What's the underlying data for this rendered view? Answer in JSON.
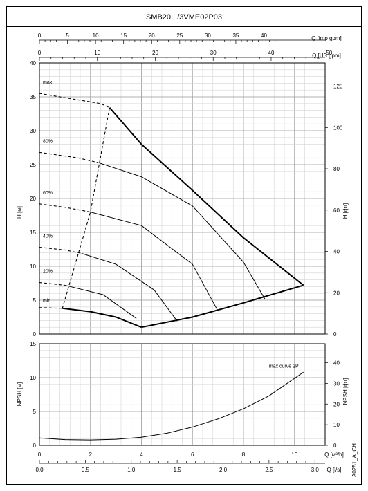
{
  "title": "SMB20.../3VME02P03",
  "side_code": "A0251_A_CH",
  "chart_data": [
    {
      "type": "line",
      "name": "performance",
      "xlabel": "Q [m³/h]",
      "ylabel": "H [м]",
      "ylabel_right": "H [фт]",
      "top_axes": [
        {
          "label": "Q [imp gpm]",
          "ticks": [
            0,
            5,
            10,
            15,
            20,
            25,
            30,
            35,
            40
          ]
        },
        {
          "label": "Q [US gpm]",
          "ticks": [
            0,
            10,
            20,
            30,
            40,
            50
          ]
        }
      ],
      "xlim": [
        0,
        11.2
      ],
      "ylim": [
        0,
        40
      ],
      "y_ticks": [
        0,
        5,
        10,
        15,
        20,
        25,
        30,
        35,
        40
      ],
      "y_ticks_right": [
        0,
        20,
        40,
        60,
        80,
        100,
        120
      ],
      "grid": true,
      "speed_labels": [
        "max",
        "80%",
        "60%",
        "40%",
        "20%",
        "min"
      ],
      "series": [
        {
          "name": "max",
          "style": "dashed",
          "x": [
            0,
            2.4,
            2.75
          ],
          "y": [
            35.5,
            34.0,
            33.4
          ]
        },
        {
          "name": "max",
          "style": "solid",
          "x": [
            2.75,
            4.0,
            6.0,
            8.0,
            10.35
          ],
          "y": [
            33.4,
            28.0,
            21.2,
            14.2,
            7.2
          ]
        },
        {
          "name": "80%",
          "style": "dashed",
          "x": [
            0,
            1.5,
            2.3
          ],
          "y": [
            26.8,
            26.0,
            25.3
          ]
        },
        {
          "name": "80%",
          "style": "solid",
          "x": [
            2.3,
            4.0,
            6.0,
            8.0,
            8.85
          ],
          "y": [
            25.3,
            23.2,
            18.9,
            10.6,
            5.1
          ]
        },
        {
          "name": "60%",
          "style": "dashed",
          "x": [
            0,
            1.0,
            2.0
          ],
          "y": [
            19.2,
            18.7,
            18.0
          ]
        },
        {
          "name": "60%",
          "style": "solid",
          "x": [
            2.0,
            4.0,
            6.0,
            7.0
          ],
          "y": [
            18.0,
            16.0,
            10.3,
            3.4
          ]
        },
        {
          "name": "40%",
          "style": "dashed",
          "x": [
            0,
            1.0,
            1.65
          ],
          "y": [
            12.8,
            12.4,
            11.9
          ]
        },
        {
          "name": "40%",
          "style": "solid",
          "x": [
            1.65,
            3.0,
            4.5,
            5.4
          ],
          "y": [
            11.9,
            10.3,
            6.5,
            1.9
          ]
        },
        {
          "name": "20%",
          "style": "dashed",
          "x": [
            0,
            1.0
          ],
          "y": [
            7.6,
            7.2
          ]
        },
        {
          "name": "20%",
          "style": "solid",
          "x": [
            1.0,
            2.5,
            3.8
          ],
          "y": [
            7.2,
            5.8,
            2.3
          ]
        },
        {
          "name": "min",
          "style": "dashed",
          "x": [
            0,
            0.9
          ],
          "y": [
            3.9,
            3.8
          ]
        },
        {
          "name": "min",
          "style": "solid",
          "x": [
            0.9,
            2.0,
            3.0,
            4.0
          ],
          "y": [
            3.8,
            3.3,
            2.5,
            1.0
          ]
        },
        {
          "name": "",
          "style": "dashed",
          "x": [
            0.9,
            2.0,
            2.75
          ],
          "y": [
            3.8,
            18.0,
            33.4
          ]
        },
        {
          "name": "",
          "style": "solid",
          "x": [
            4.0,
            6.0,
            8.0,
            10.35
          ],
          "y": [
            1.0,
            2.5,
            4.6,
            7.2
          ]
        }
      ]
    },
    {
      "type": "line",
      "name": "npsh",
      "xlabel": "Q [м³/h]",
      "xlabel2": "Q [l/s]",
      "ylabel": "NPSH [м]",
      "ylabel_right": "NPSH [фт]",
      "xlim": [
        0,
        11.2
      ],
      "ylim": [
        0,
        15
      ],
      "x_ticks": [
        0,
        2,
        4,
        6,
        8,
        10
      ],
      "x_ticks2": [
        "0.0",
        "0.5",
        "1.0",
        "1.5",
        "2.0",
        "2.5",
        "3.0"
      ],
      "y_ticks": [
        0,
        5,
        10,
        15
      ],
      "y_ticks_right": [
        0,
        10,
        20,
        30,
        40
      ],
      "grid": true,
      "series": [
        {
          "name": "max curve 2P",
          "x": [
            0,
            1,
            2,
            3,
            4,
            5,
            6,
            7,
            8,
            9,
            10.35
          ],
          "y": [
            1.1,
            0.85,
            0.8,
            0.9,
            1.2,
            1.8,
            2.7,
            3.9,
            5.4,
            7.3,
            10.8
          ]
        }
      ]
    }
  ]
}
